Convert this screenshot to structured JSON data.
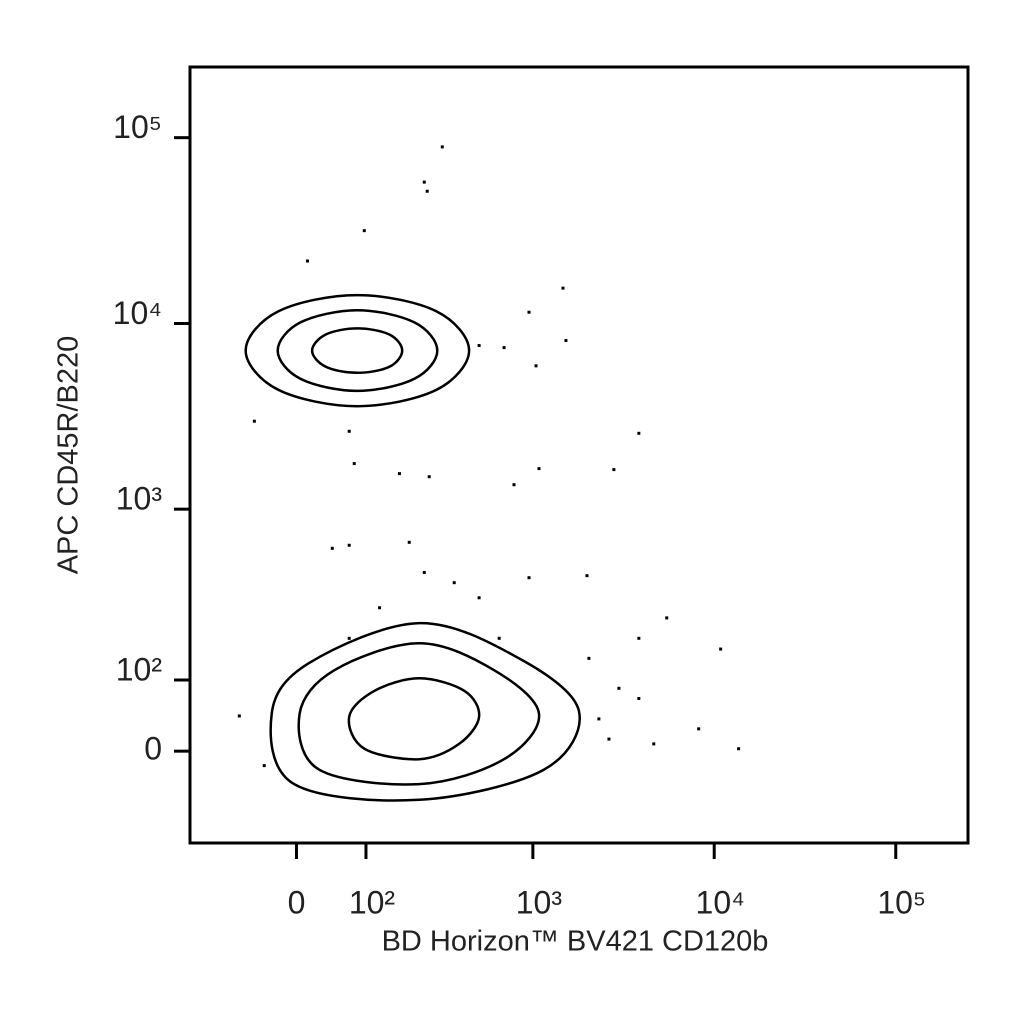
{
  "chart_data": {
    "type": "contour",
    "x_label": "BD Horizon™ BV421 CD120b",
    "y_label": "APC CD45R/B220",
    "xscale": "biexponential",
    "yscale": "biexponential",
    "color": "#000000",
    "xlim": [
      -180,
      250000
    ],
    "ylim": [
      -140,
      240000
    ],
    "xticks": [
      0,
      {
        "value": 100,
        "label": "10²"
      },
      {
        "value": 1000,
        "label": "10³"
      },
      {
        "value": 10000,
        "label": "10⁴"
      },
      {
        "value": 100000,
        "label": "10⁵"
      }
    ],
    "yticks": [
      0,
      {
        "value": 100,
        "label": "10²"
      },
      {
        "value": 1000,
        "label": "10³"
      },
      {
        "value": 10000,
        "label": "10⁴"
      },
      {
        "value": 100000,
        "label": "10⁵"
      }
    ],
    "contours": [
      {
        "x": [
          441,
          286,
          85,
          -23,
          -69,
          -23,
          85,
          286
        ],
        "y": [
          7150,
          4390,
          3590,
          4390,
          7150,
          11640,
          14220,
          11640
        ]
      },
      {
        "x": [
          290,
          212,
          85,
          5,
          -24,
          5,
          85,
          212
        ],
        "y": [
          7150,
          5040,
          4340,
          5040,
          7150,
          10140,
          11790,
          10140
        ]
      },
      {
        "x": [
          178,
          147,
          85,
          38,
          20,
          38,
          85,
          147
        ],
        "y": [
          7150,
          5850,
          5430,
          5850,
          7150,
          8730,
          9410,
          8730
        ]
      },
      {
        "x": [
          1795,
          1152,
          227,
          -3,
          -32,
          16,
          227,
          839
        ],
        "y": [
          52,
          -23,
          -64,
          -42,
          48,
          132,
          234,
          142
        ]
      },
      {
        "x": [
          1081,
          692,
          227,
          29,
          4,
          50,
          227,
          609
        ],
        "y": [
          48,
          -10,
          -42,
          -23,
          48,
          118,
          177,
          118
        ]
      },
      {
        "x": [
          502,
          387,
          227,
          97,
          72,
          116,
          227,
          414
        ],
        "y": [
          44,
          9,
          -10,
          3,
          44,
          82,
          103,
          82
        ]
      }
    ],
    "points": {
      "x": [
        310,
        243,
        253,
        97,
        14,
        1467,
        952,
        1523,
        1041,
        3844,
        2800,
        786,
        1081,
        260,
        171,
        80,
        72,
        47,
        197,
        952,
        1990,
        3844,
        5475,
        10850,
        13620,
        8210,
        3844,
        2985,
        2315,
        4645,
        2630,
        2040,
        502,
        363,
        243,
        126,
        72,
        -79,
        -42,
        650,
        502,
        692,
        -56,
        72
      ],
      "y": [
        89200,
        57650,
        51500,
        31600,
        21700,
        15500,
        11500,
        8100,
        5920,
        2565,
        1635,
        1355,
        1655,
        1497,
        1555,
        1762,
        637,
        613,
        661,
        423,
        434,
        190,
        251,
        163,
        3,
        28,
        70,
        86,
        41,
        9,
        15,
        142,
        327,
        397,
        452,
        287,
        190,
        45,
        -18,
        190,
        7610,
        7420,
        2980,
        2630
      ]
    }
  }
}
